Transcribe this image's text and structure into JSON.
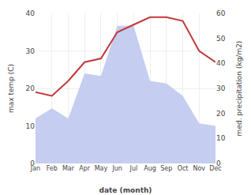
{
  "chart_data": {
    "type": "line",
    "categories": [
      "Jan",
      "Feb",
      "Mar",
      "Apr",
      "May",
      "Jun",
      "Jul",
      "Aug",
      "Sep",
      "Oct",
      "Nov",
      "Dec"
    ],
    "series": [
      {
        "type": "area",
        "color": "#c5cdf0",
        "axis": "y2",
        "values": [
          18,
          22,
          18,
          36,
          35,
          55,
          55,
          33,
          32,
          27,
          16,
          15
        ]
      },
      {
        "type": "line",
        "color": "#c0393b",
        "values": [
          19,
          18,
          22,
          27,
          28,
          35,
          37,
          39,
          39,
          38,
          30,
          27
        ]
      }
    ],
    "xlabel": "date (month)",
    "ylabel": "max temp (C)",
    "y2label": "med. precipitation (kg/m2)",
    "ylim": [
      0,
      40
    ],
    "yticks": [
      0,
      10,
      20,
      30,
      40
    ],
    "y2lim": [
      0,
      60
    ],
    "y2ticks": [
      0,
      10,
      20,
      30,
      40,
      50,
      60
    ],
    "grid": true
  }
}
